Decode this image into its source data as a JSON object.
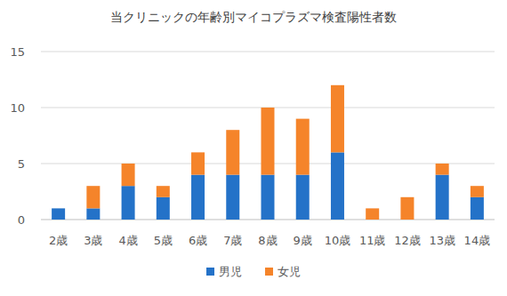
{
  "chart_data": {
    "type": "bar",
    "title": "当クリニックの年齢別マイコプラズマ検査陽性者数",
    "categories": [
      "2歳",
      "3歳",
      "4歳",
      "5歳",
      "6歳",
      "7歳",
      "8歳",
      "9歳",
      "10歳",
      "11歳",
      "12歳",
      "13歳",
      "14歳"
    ],
    "series": [
      {
        "name": "男児",
        "color": "#2472c8",
        "values": [
          1,
          1,
          3,
          2,
          4,
          4,
          4,
          4,
          6,
          0,
          0,
          4,
          2
        ]
      },
      {
        "name": "女児",
        "color": "#f5842a",
        "values": [
          0,
          2,
          2,
          1,
          2,
          4,
          6,
          5,
          6,
          1,
          2,
          1,
          1
        ]
      }
    ],
    "stacked": true,
    "ylim": [
      0,
      15
    ],
    "yticks": [
      0,
      5,
      10,
      15
    ],
    "grid": true,
    "legend": "bottom"
  }
}
